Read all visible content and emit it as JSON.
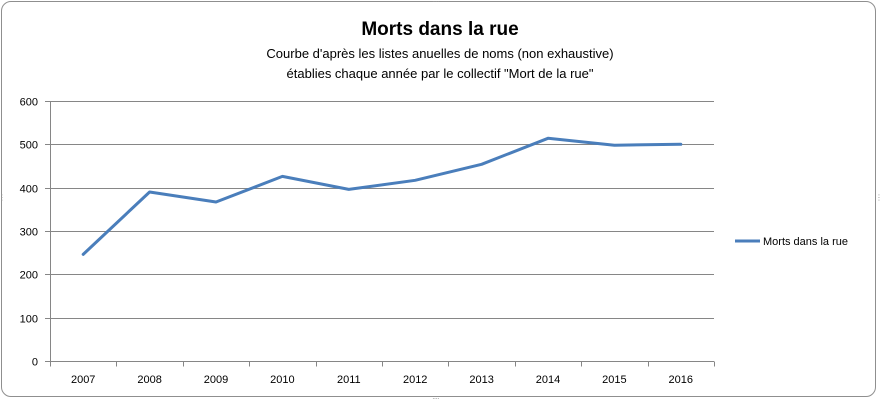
{
  "chart_data": {
    "type": "line",
    "title": "Morts dans la rue",
    "subtitle_lines": [
      "Courbe d'après les listes anuelles de noms (non exhaustive)",
      "établies chaque année par le collectif  \"Mort de la rue\""
    ],
    "categories": [
      "2007",
      "2008",
      "2009",
      "2010",
      "2011",
      "2012",
      "2013",
      "2014",
      "2015",
      "2016"
    ],
    "series": [
      {
        "name": "Morts dans la rue",
        "values": [
          246,
          390,
          367,
          426,
          396,
          417,
          454,
          514,
          498,
          500
        ],
        "color": "#4a7ebb"
      }
    ],
    "ylim": [
      0,
      600
    ],
    "yticks": [
      0,
      100,
      200,
      300,
      400,
      500,
      600
    ],
    "grid": true,
    "legend_position": "right"
  }
}
